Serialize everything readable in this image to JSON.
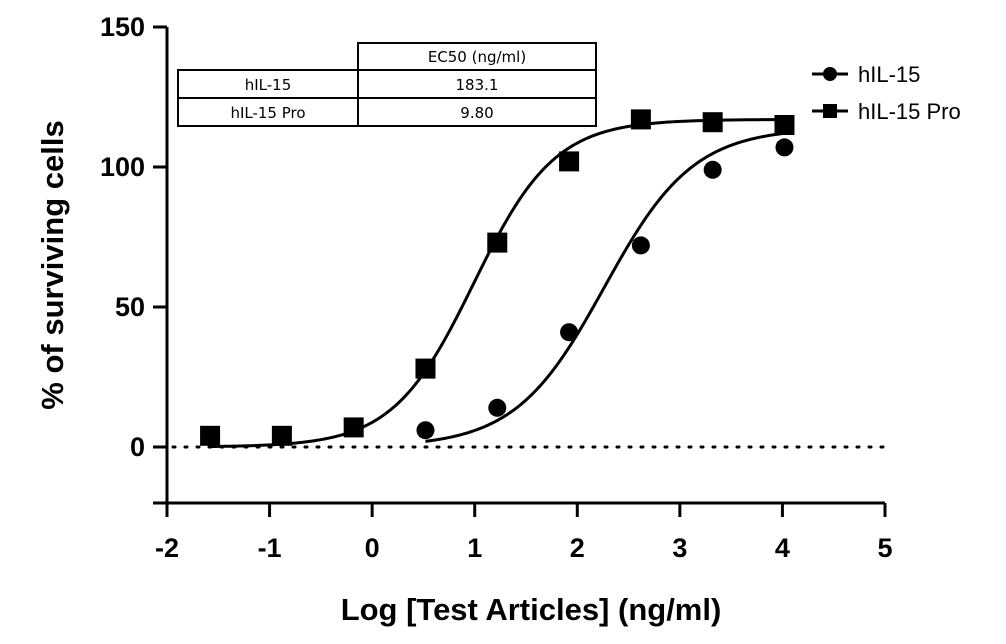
{
  "chart_data": {
    "type": "line",
    "xlabel": "Log [Test Articles] (ng/ml)",
    "ylabel": "% of surviving cells",
    "xlim": [
      -2,
      5
    ],
    "ylim": [
      -20,
      150
    ],
    "xticks": [
      "-2",
      "-1",
      "0",
      "1",
      "2",
      "3",
      "4",
      "5"
    ],
    "yticks": [
      "0",
      "50",
      "100",
      "150"
    ],
    "x_tick_values": [
      -2,
      -1,
      0,
      1,
      2,
      3,
      4,
      5
    ],
    "y_tick_values": [
      0,
      50,
      100,
      150
    ],
    "reference_line": {
      "y": 0,
      "style": "dotted"
    },
    "legend_position": "top-right",
    "series": [
      {
        "name": "hIL-15",
        "marker": "circle",
        "x": [
          0.52,
          1.22,
          1.92,
          2.62,
          3.32,
          4.02
        ],
        "y": [
          6,
          14,
          41,
          72,
          99,
          107
        ],
        "fit": {
          "bottom": 0,
          "top": 114,
          "log_ec50": 2.263,
          "hill": 1.0
        }
      },
      {
        "name": "hIL-15 Pro",
        "marker": "square",
        "x": [
          -1.58,
          -0.88,
          -0.18,
          0.52,
          1.22,
          1.92,
          2.62,
          3.32,
          4.02
        ],
        "y": [
          4,
          4,
          7,
          28,
          73,
          102,
          117,
          116,
          115
        ],
        "fit": {
          "bottom": 0,
          "top": 117,
          "log_ec50": 0.991,
          "hill": 1.1
        }
      }
    ],
    "table": {
      "header": [
        "",
        "EC50 (ng/ml)"
      ],
      "rows": [
        {
          "label": "hIL-15",
          "value": "183.1"
        },
        {
          "label": "hIL-15 Pro",
          "value": "9.80"
        }
      ]
    }
  }
}
